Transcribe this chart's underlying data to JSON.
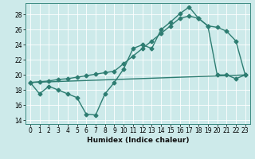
{
  "xlabel": "Humidex (Indice chaleur)",
  "bg_color": "#cdeaea",
  "line_color": "#2e7d72",
  "grid_color": "#ffffff",
  "xlim": [
    -0.5,
    23.5
  ],
  "ylim": [
    13.5,
    29.5
  ],
  "xticks": [
    0,
    1,
    2,
    3,
    4,
    5,
    6,
    7,
    8,
    9,
    10,
    11,
    12,
    13,
    14,
    15,
    16,
    17,
    18,
    19,
    20,
    21,
    22,
    23
  ],
  "yticks": [
    14,
    16,
    18,
    20,
    22,
    24,
    26,
    28
  ],
  "line1_x": [
    0,
    1,
    2,
    3,
    4,
    5,
    6,
    7,
    8,
    9,
    10,
    11,
    12,
    13,
    14,
    15,
    16,
    17,
    18,
    19,
    20,
    21,
    22,
    23
  ],
  "line1_y": [
    19.0,
    17.5,
    18.5,
    18.0,
    17.5,
    17.0,
    14.8,
    14.7,
    17.5,
    19.0,
    20.8,
    23.5,
    24.0,
    23.5,
    26.0,
    27.0,
    28.1,
    29.0,
    27.5,
    26.5,
    20.0,
    20.0,
    19.5,
    20.0
  ],
  "line2_x": [
    0,
    23
  ],
  "line2_y": [
    19.0,
    20.0
  ],
  "line3_x": [
    0,
    1,
    2,
    3,
    4,
    5,
    6,
    7,
    8,
    9,
    10,
    11,
    12,
    13,
    14,
    15,
    16,
    17,
    18,
    19,
    20,
    21,
    22,
    23
  ],
  "line3_y": [
    19.0,
    19.1,
    19.2,
    19.4,
    19.5,
    19.7,
    19.9,
    20.1,
    20.3,
    20.5,
    21.5,
    22.5,
    23.5,
    24.5,
    25.5,
    26.5,
    27.5,
    27.8,
    27.5,
    26.5,
    26.3,
    25.8,
    24.5,
    20.0
  ],
  "markersize": 2.5,
  "linewidth": 1.0,
  "tick_labelsize": 5.5,
  "xlabel_fontsize": 6.5
}
